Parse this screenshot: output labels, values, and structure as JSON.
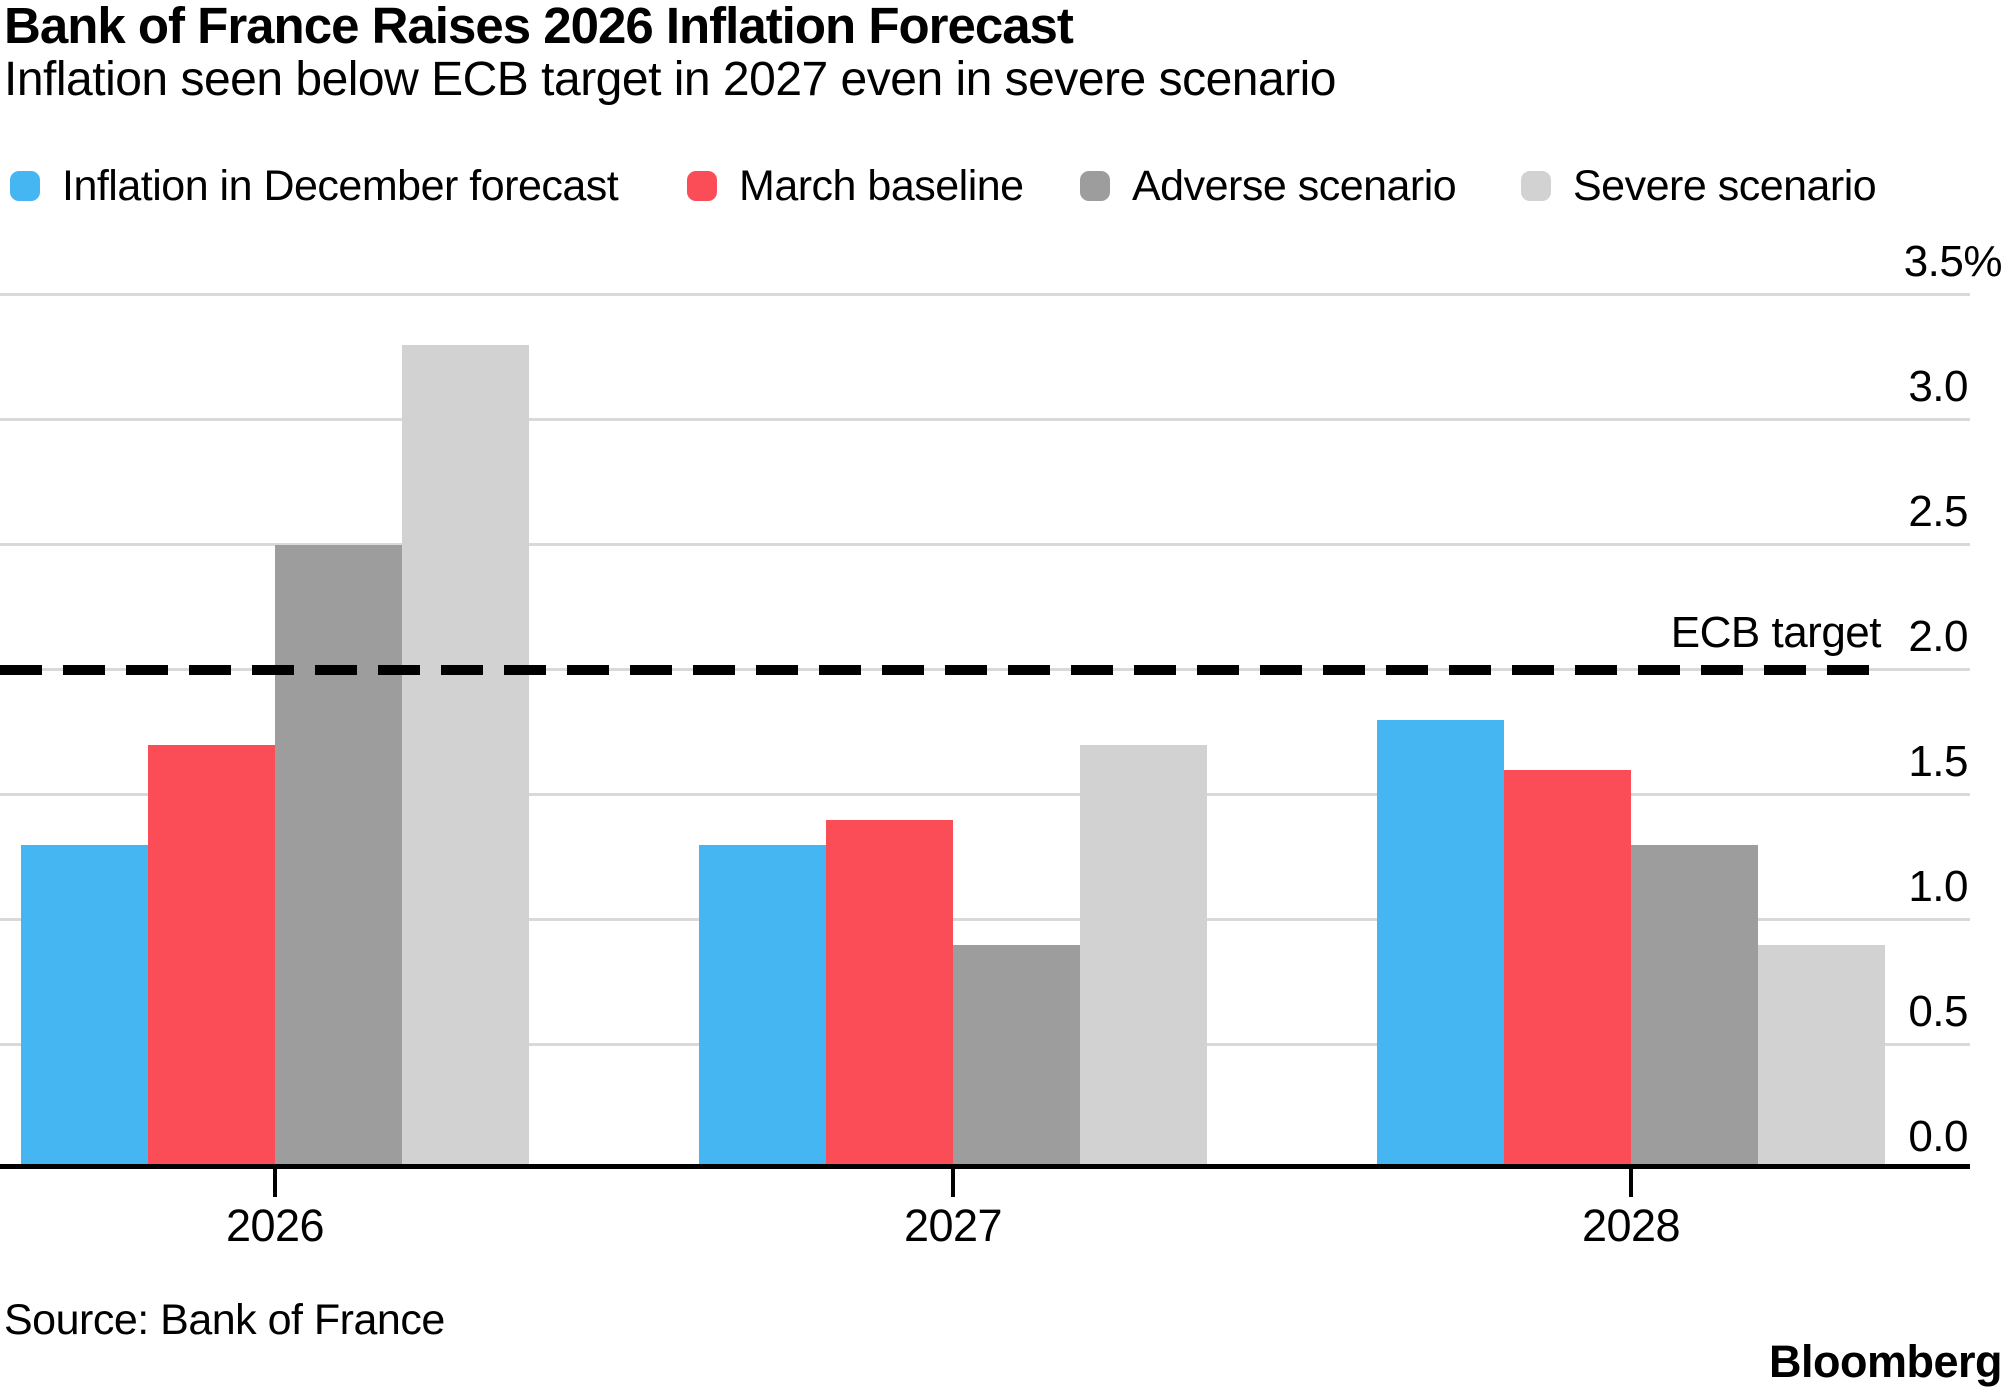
{
  "header": {
    "title": "Bank of France Raises 2026 Inflation Forecast",
    "subtitle": "Inflation seen below ECB target in 2027 even in severe scenario"
  },
  "source_note": "Source: Bank of France",
  "brand": "Bloomberg",
  "colors": {
    "december_forecast": "#45B6F2",
    "march_baseline": "#FB4D57",
    "adverse_scenario": "#9D9D9D",
    "severe_scenario": "#D2D2D2",
    "gridline": "#D9D9D9",
    "axis": "#000000",
    "reference_line": "#000000"
  },
  "chart_data": {
    "type": "bar",
    "categories": [
      "2026",
      "2027",
      "2028"
    ],
    "series": [
      {
        "name": "Inflation in December forecast",
        "color": "#45B6F2",
        "values": [
          1.3,
          1.3,
          1.8
        ]
      },
      {
        "name": "March baseline",
        "color": "#FB4D57",
        "values": [
          1.7,
          1.4,
          1.6
        ]
      },
      {
        "name": "Adverse scenario",
        "color": "#9D9D9D",
        "values": [
          2.5,
          0.9,
          1.3
        ]
      },
      {
        "name": "Severe scenario",
        "color": "#D2D2D2",
        "values": [
          3.3,
          1.7,
          0.9
        ]
      }
    ],
    "unit": "%",
    "ylim": [
      0.0,
      3.5
    ],
    "yticks": [
      {
        "v": 3.5,
        "label": "3.5%"
      },
      {
        "v": 3.0,
        "label": "3.0"
      },
      {
        "v": 2.5,
        "label": "2.5"
      },
      {
        "v": 2.0,
        "label": "2.0"
      },
      {
        "v": 1.5,
        "label": "1.5"
      },
      {
        "v": 1.0,
        "label": "1.0"
      },
      {
        "v": 0.5,
        "label": "0.5"
      },
      {
        "v": 0.0,
        "label": "0.0"
      }
    ],
    "grid": true,
    "legend_position": "top",
    "reference_line": {
      "value": 2.0,
      "label": "ECB target",
      "style": "dashed"
    }
  }
}
